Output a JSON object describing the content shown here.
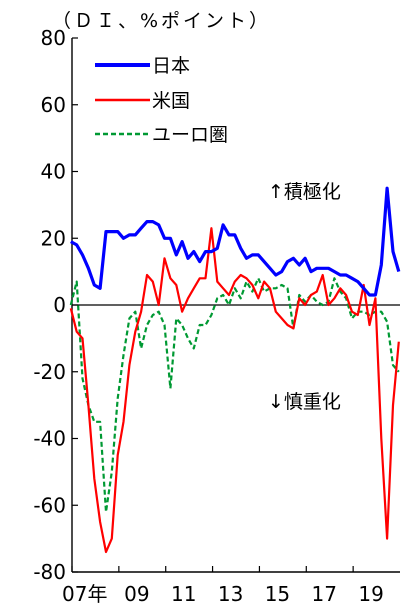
{
  "chart_data": {
    "type": "line",
    "unit_label": "（ＤＩ、%ポイント）",
    "xlabel": "",
    "ylabel": "",
    "ylim": [
      -80,
      80
    ],
    "yticks": [
      -80,
      -60,
      -40,
      -20,
      0,
      20,
      40,
      60,
      80
    ],
    "ytick_labels": [
      "-80",
      "-60",
      "-40",
      "-20",
      "0",
      "20",
      "40",
      "60",
      "80"
    ],
    "xlim": [
      2007.0,
      2021.0
    ],
    "xticks": [
      {
        "x": 2007.0,
        "label": "07年"
      },
      {
        "x": 2009.0,
        "label": "09"
      },
      {
        "x": 2011.0,
        "label": "11"
      },
      {
        "x": 2013.0,
        "label": "13"
      },
      {
        "x": 2015.0,
        "label": "15"
      },
      {
        "x": 2017.0,
        "label": "17"
      },
      {
        "x": 2019.0,
        "label": "19"
      }
    ],
    "annotations": [
      "↑積極化",
      "↓慎重化"
    ],
    "legend_position": "top-left",
    "series": [
      {
        "name": "日本",
        "color": "#0000ff",
        "style": "solid",
        "x": [
          2006.95,
          2007.2,
          2007.45,
          2007.7,
          2007.95,
          2008.2,
          2008.45,
          2008.7,
          2008.95,
          2009.2,
          2009.45,
          2009.7,
          2009.95,
          2010.2,
          2010.45,
          2010.7,
          2010.95,
          2011.2,
          2011.45,
          2011.7,
          2011.95,
          2012.2,
          2012.45,
          2012.7,
          2012.95,
          2013.2,
          2013.45,
          2013.7,
          2013.95,
          2014.2,
          2014.45,
          2014.7,
          2014.95,
          2015.2,
          2015.45,
          2015.7,
          2015.95,
          2016.2,
          2016.45,
          2016.7,
          2016.95,
          2017.2,
          2017.45,
          2017.7,
          2017.95,
          2018.2,
          2018.45,
          2018.7,
          2018.95,
          2019.2,
          2019.45,
          2019.7,
          2019.95,
          2020.2,
          2020.45,
          2020.7,
          2020.95
        ],
        "values": [
          19,
          18,
          15,
          11,
          6,
          5,
          22,
          22,
          22,
          20,
          21,
          21,
          23,
          25,
          25,
          24,
          20,
          20,
          15,
          19,
          14,
          16,
          13,
          16,
          16,
          17,
          24,
          21,
          21,
          17,
          14,
          15,
          15,
          13,
          11,
          9,
          10,
          13,
          14,
          12,
          14,
          10,
          11,
          11,
          11,
          10,
          9,
          9,
          8,
          7,
          5,
          3,
          3,
          12,
          35,
          16,
          10
        ]
      },
      {
        "name": "米国",
        "color": "#ff0000",
        "style": "solid",
        "x": [
          2006.95,
          2007.2,
          2007.45,
          2007.7,
          2007.95,
          2008.2,
          2008.45,
          2008.7,
          2008.95,
          2009.2,
          2009.45,
          2009.7,
          2009.95,
          2010.2,
          2010.45,
          2010.7,
          2010.95,
          2011.2,
          2011.45,
          2011.7,
          2011.95,
          2012.2,
          2012.45,
          2012.7,
          2012.95,
          2013.2,
          2013.45,
          2013.7,
          2013.95,
          2014.2,
          2014.45,
          2014.7,
          2014.95,
          2015.2,
          2015.45,
          2015.7,
          2015.95,
          2016.2,
          2016.45,
          2016.7,
          2016.95,
          2017.2,
          2017.45,
          2017.7,
          2017.95,
          2018.2,
          2018.45,
          2018.7,
          2018.95,
          2019.2,
          2019.45,
          2019.7,
          2019.95,
          2020.2,
          2020.45,
          2020.7,
          2020.95
        ],
        "values": [
          -1,
          -8,
          -10,
          -30,
          -52,
          -65,
          -74,
          -70,
          -45,
          -35,
          -18,
          -8,
          -2,
          9,
          7,
          0,
          14,
          8,
          6,
          -2,
          2,
          5,
          8,
          8,
          23,
          7,
          5,
          3,
          7,
          9,
          8,
          6,
          2,
          7,
          5,
          -2,
          -4,
          -6,
          -7,
          2,
          0,
          3,
          4,
          9,
          0,
          2,
          5,
          3,
          -2,
          -3,
          6,
          -6,
          2,
          -40,
          -70,
          -30,
          -11
        ]
      },
      {
        "name": "ユーロ圏",
        "color": "#009933",
        "style": "dashed",
        "x": [
          2006.95,
          2007.2,
          2007.45,
          2007.7,
          2007.95,
          2008.2,
          2008.45,
          2008.7,
          2008.95,
          2009.2,
          2009.45,
          2009.7,
          2009.95,
          2010.2,
          2010.45,
          2010.7,
          2010.95,
          2011.2,
          2011.45,
          2011.7,
          2011.95,
          2012.2,
          2012.45,
          2012.7,
          2012.95,
          2013.2,
          2013.45,
          2013.7,
          2013.95,
          2014.2,
          2014.45,
          2014.7,
          2014.95,
          2015.2,
          2015.45,
          2015.7,
          2015.95,
          2016.2,
          2016.45,
          2016.7,
          2016.95,
          2017.2,
          2017.45,
          2017.7,
          2017.95,
          2018.2,
          2018.45,
          2018.7,
          2018.95,
          2019.2,
          2019.45,
          2019.7,
          2019.95,
          2020.2,
          2020.45,
          2020.7,
          2020.95
        ],
        "values": [
          0,
          7,
          -22,
          -30,
          -35,
          -35,
          -62,
          -50,
          -28,
          -15,
          -4,
          -2,
          -13,
          -6,
          -3,
          -2,
          -6,
          -25,
          -4,
          -6,
          -10,
          -13,
          -6,
          -6,
          -3,
          2,
          3,
          0,
          5,
          2,
          7,
          4,
          8,
          4,
          5,
          5,
          6,
          5,
          -7,
          3,
          1,
          3,
          1,
          0,
          1,
          8,
          4,
          2,
          -4,
          -2,
          -2,
          -3,
          -2,
          -2,
          -5,
          -18,
          -20
        ]
      }
    ]
  }
}
